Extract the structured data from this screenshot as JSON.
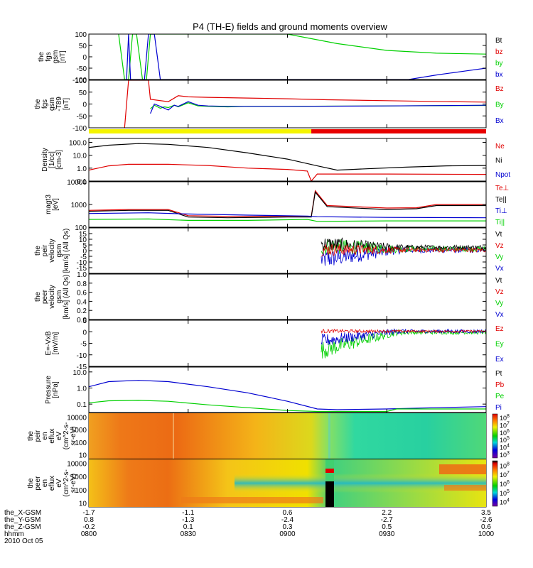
{
  "title": "P4 (TH-E) fields and ground moments overview",
  "date_label": "2010 Oct 05",
  "footer": {
    "row_labels": [
      "the_X-GSM",
      "the_Y-GSM",
      "the_Z-GSM",
      "hhmm"
    ],
    "columns": [
      {
        "x": "-1.7",
        "y": "0.8",
        "z": "-0.2",
        "t": "0800"
      },
      {
        "x": "-1.1",
        "y": "-1.3",
        "z": "0.1",
        "t": "0830"
      },
      {
        "x": "0.6",
        "y": "-2.4",
        "z": "0.3",
        "t": "0900"
      },
      {
        "x": "2.2",
        "y": "-2.7",
        "z": "0.5",
        "t": "0930"
      },
      {
        "x": "3.5",
        "y": "-2.6",
        "z": "0.6",
        "t": "1000"
      }
    ]
  },
  "colors": {
    "black": "#000000",
    "red": "#e00000",
    "green": "#00d000",
    "blue": "#0000d0",
    "mode_slow": "#f4f400",
    "mode_fast": "#e80000"
  },
  "chart_data": {
    "type": "line",
    "time_range_hours": [
      8.0,
      10.0
    ],
    "panels": [
      {
        "id": "fgs",
        "ylabel_lines": [
          "the",
          "fgs",
          "gsm",
          "[nT]"
        ],
        "ylim": [
          -100,
          100
        ],
        "yticks": [
          "100",
          "50",
          "0",
          "-50",
          "-100"
        ],
        "legend": [
          {
            "text": "Bt",
            "color": "#000000"
          },
          {
            "text": "bz",
            "color": "#e00000"
          },
          {
            "text": "by",
            "color": "#00d000"
          },
          {
            "text": "bx",
            "color": "#0000d0"
          }
        ],
        "series": [
          {
            "color": "#00d000",
            "t": [
              8.15,
              8.18,
              8.2,
              8.22,
              8.24,
              8.27,
              8.29,
              8.31,
              8.33,
              8.5,
              9.0,
              9.25,
              9.5,
              9.75,
              10.0
            ],
            "y": [
              100,
              -100,
              -100,
              100,
              100,
              -100,
              -100,
              100,
              100,
              100,
              100,
              58,
              28,
              16,
              12
            ]
          },
          {
            "color": "#0000d0",
            "t": [
              8.19,
              8.2,
              8.21,
              8.28,
              8.3,
              8.33,
              8.36,
              9.61,
              9.75,
              9.9,
              10.0
            ],
            "y": [
              -100,
              100,
              -100,
              -100,
              100,
              100,
              -100,
              -100,
              -80,
              -62,
              -50
            ]
          }
        ]
      },
      {
        "id": "fgm",
        "ylabel_lines": [
          "the",
          "fgs",
          "gsm",
          "-T89",
          "[nT]"
        ],
        "ylim": [
          -100,
          100
        ],
        "yticks": [
          "100",
          "50",
          "0",
          "-50",
          "-100"
        ],
        "legend": [
          {
            "text": "Bz",
            "color": "#e00000"
          },
          {
            "text": "By",
            "color": "#00d000"
          },
          {
            "text": "Bx",
            "color": "#0000d0"
          }
        ],
        "series": [
          {
            "color": "#e00000",
            "t": [
              8.18,
              8.2,
              8.23,
              8.3,
              8.31,
              8.4,
              8.45,
              8.5,
              8.6,
              8.8,
              9.0,
              9.2,
              9.5,
              9.8,
              10.0
            ],
            "y": [
              -100,
              100,
              100,
              100,
              20,
              10,
              35,
              30,
              28,
              25,
              22,
              18,
              14,
              10,
              8
            ]
          },
          {
            "color": "#00d000",
            "t": [
              8.31,
              8.33,
              8.36,
              8.38,
              8.4,
              8.43,
              8.45,
              8.5,
              8.55,
              8.6,
              8.7,
              8.8,
              9.0,
              9.2,
              9.5,
              10.0
            ],
            "y": [
              -20,
              -5,
              -18,
              -12,
              -15,
              -5,
              -12,
              5,
              -8,
              -10,
              -12,
              -10,
              -10,
              -9,
              -8,
              -6
            ]
          },
          {
            "color": "#0000d0",
            "t": [
              8.31,
              8.33,
              8.36,
              8.4,
              8.43,
              8.45,
              8.5,
              8.55,
              8.6,
              8.7,
              9.0,
              9.5,
              10.0
            ],
            "y": [
              -40,
              0,
              -10,
              -25,
              -5,
              -10,
              10,
              -5,
              -8,
              -10,
              -10,
              -8,
              -5
            ]
          }
        ]
      },
      {
        "id": "moments-density",
        "ylabel_lines": [
          "Density",
          "[1/cc]",
          "[cm-3]"
        ],
        "log": true,
        "ylim": [
          0.1,
          200
        ],
        "yticks": [
          "100.0",
          "10.0",
          "1.0",
          "0.1"
        ],
        "legend": [
          {
            "text": "Ne",
            "color": "#e00000"
          },
          {
            "text": "Ni",
            "color": "#000000"
          },
          {
            "text": "Npot",
            "color": "#0000d0"
          }
        ],
        "series": [
          {
            "color": "#000000",
            "t": [
              8.0,
              8.1,
              8.25,
              8.4,
              8.6,
              8.8,
              9.0,
              9.15,
              9.25,
              9.4,
              9.6,
              9.8,
              10.0
            ],
            "y": [
              40,
              60,
              80,
              70,
              40,
              15,
              5,
              1.5,
              0.7,
              0.9,
              1.2,
              1.5,
              1.6
            ]
          },
          {
            "color": "#e00000",
            "t": [
              8.0,
              8.1,
              8.2,
              8.4,
              8.6,
              8.8,
              9.0,
              9.1,
              9.12,
              9.15,
              9.5,
              10.0
            ],
            "y": [
              0.7,
              1.5,
              2.0,
              2.0,
              1.6,
              1.0,
              0.8,
              0.6,
              0.1,
              0.35,
              0.35,
              0.33
            ]
          }
        ]
      },
      {
        "id": "moments-temperature",
        "ylabel_lines": [
          "magt3",
          "[eV]"
        ],
        "log": true,
        "ylim": [
          100,
          10000
        ],
        "yticks": [
          "10000",
          "1000",
          "100"
        ],
        "legend": [
          {
            "text": "Te⊥",
            "color": "#e00000"
          },
          {
            "text": "Te||",
            "color": "#000000"
          },
          {
            "text": "Ti⊥",
            "color": "#0000d0"
          },
          {
            "text": "Ti||",
            "color": "#00d000"
          }
        ],
        "series": [
          {
            "color": "#e00000",
            "t": [
              8.0,
              8.2,
              8.4,
              8.5,
              8.7,
              9.0,
              9.12,
              9.14,
              9.2,
              9.5,
              9.65,
              9.75,
              10.0
            ],
            "y": [
              550,
              600,
              600,
              320,
              300,
              300,
              300,
              4000,
              900,
              700,
              720,
              1000,
              1000
            ]
          },
          {
            "color": "#000000",
            "t": [
              8.0,
              8.2,
              8.4,
              8.5,
              8.7,
              9.0,
              9.12,
              9.14,
              9.2,
              9.5,
              9.65,
              9.75,
              10.0
            ],
            "y": [
              500,
              550,
              550,
              280,
              260,
              280,
              280,
              3500,
              800,
              600,
              650,
              900,
              900
            ]
          },
          {
            "color": "#0000d0",
            "t": [
              8.0,
              8.3,
              8.5,
              8.8,
              9.1,
              9.15,
              9.5,
              10.0
            ],
            "y": [
              400,
              430,
              380,
              340,
              310,
              290,
              270,
              260
            ]
          },
          {
            "color": "#00d000",
            "t": [
              8.0,
              8.3,
              8.5,
              8.8,
              9.1,
              9.15,
              9.5,
              10.0
            ],
            "y": [
              220,
              230,
              200,
              200,
              220,
              180,
              190,
              190
            ]
          }
        ]
      },
      {
        "id": "peir-velocity",
        "ylabel_lines": [
          "the",
          "peir",
          "velocity",
          "gsm",
          "[km/s] (All Qs)"
        ],
        "ylim": [
          -20,
          20
        ],
        "yticks": [
          "15",
          "10",
          "5",
          "0",
          "-5",
          "-10",
          "-15"
        ],
        "legend": [
          {
            "text": "Vt",
            "color": "#000000"
          },
          {
            "text": "Vz",
            "color": "#e00000"
          },
          {
            "text": "Vy",
            "color": "#00d000"
          },
          {
            "text": "Vx",
            "color": "#0000d0"
          }
        ],
        "noisy": [
          {
            "color": "#0000d0",
            "t0": 9.17,
            "t1": 10.0,
            "start": -8,
            "end": 0.5,
            "amp0": 9,
            "amp1": 2.5
          },
          {
            "color": "#00d000",
            "t0": 9.17,
            "t1": 10.0,
            "start": 4,
            "end": 1.5,
            "amp0": 8,
            "amp1": 2.5
          },
          {
            "color": "#000000",
            "t0": 9.17,
            "t1": 10.0,
            "start": 6,
            "end": 3,
            "amp0": 7,
            "amp1": 2
          },
          {
            "color": "#e00000",
            "t0": 9.17,
            "t1": 10.0,
            "start": 1,
            "end": 0.5,
            "amp0": 6,
            "amp1": 2
          }
        ]
      },
      {
        "id": "peer-velocity",
        "ylabel_lines": [
          "the",
          "peer",
          "velocity",
          "gsm",
          "[km/s] (All Qs)"
        ],
        "ylim": [
          0,
          1
        ],
        "yticks": [
          "1.0",
          "0.8",
          "0.6",
          "0.4",
          "0.2",
          "0.0"
        ],
        "legend": [
          {
            "text": "Vt",
            "color": "#000000"
          },
          {
            "text": "Vz",
            "color": "#e00000"
          },
          {
            "text": "Vy",
            "color": "#00d000"
          },
          {
            "text": "Vx",
            "color": "#0000d0"
          }
        ]
      },
      {
        "id": "efield",
        "ylabel_lines": [
          "E=-VxB",
          "[mV/m]"
        ],
        "ylim": [
          -15,
          5
        ],
        "yticks": [
          "5",
          "0",
          "-5",
          "-10",
          "-15"
        ],
        "legend": [
          {
            "text": "Ez",
            "color": "#e00000"
          },
          {
            "text": "Ey",
            "color": "#00d000"
          },
          {
            "text": "Ex",
            "color": "#0000d0"
          }
        ],
        "noisy": [
          {
            "color": "#00d000",
            "t0": 9.17,
            "t1": 10.0,
            "start": -8,
            "end": -0.3,
            "amp0": 4,
            "amp1": 0.8
          },
          {
            "color": "#0000d0",
            "t0": 9.17,
            "t1": 10.0,
            "start": -4,
            "end": 0.2,
            "amp0": 3,
            "amp1": 0.8
          },
          {
            "color": "#e00000",
            "t0": 9.17,
            "t1": 10.0,
            "start": 0.3,
            "end": 0.2,
            "amp0": 0.8,
            "amp1": 0.5
          }
        ]
      },
      {
        "id": "pressure",
        "ylabel_lines": [
          "Pressure",
          "[nPa]"
        ],
        "log": true,
        "ylim": [
          0.03,
          20
        ],
        "yticks": [
          "10.0",
          "1.0",
          "0.1"
        ],
        "legend": [
          {
            "text": "Pt",
            "color": "#000000"
          },
          {
            "text": "Pb",
            "color": "#e00000"
          },
          {
            "text": "Pe",
            "color": "#00d000"
          },
          {
            "text": "Pi",
            "color": "#0000d0"
          }
        ],
        "series": [
          {
            "color": "#0000d0",
            "t": [
              8.0,
              8.1,
              8.25,
              8.4,
              8.6,
              8.8,
              9.0,
              9.15,
              9.25,
              9.5,
              9.75,
              10.0
            ],
            "y": [
              1.2,
              2.5,
              3.0,
              2.5,
              1.2,
              0.5,
              0.15,
              0.05,
              0.045,
              0.05,
              0.06,
              0.07
            ]
          },
          {
            "color": "#00d000",
            "t": [
              8.0,
              8.1,
              8.25,
              8.4,
              8.6,
              8.8,
              9.0,
              9.15,
              9.25,
              9.5,
              9.55,
              9.75,
              10.0
            ],
            "y": [
              0.12,
              0.16,
              0.17,
              0.15,
              0.09,
              0.06,
              0.04,
              0.035,
              0.035,
              0.035,
              0.05,
              0.05,
              0.05
            ]
          }
        ]
      }
    ],
    "spectrograms": [
      {
        "id": "peir-en-eflux",
        "ylabel_lines": [
          "the",
          "peir",
          "en",
          "eflux",
          "eV",
          "(cm^2-s-",
          "sr-eV)"
        ],
        "yticks": [
          "10000",
          "1000",
          "100",
          "10"
        ],
        "colorbar_ticks": [
          "10^8",
          "10^7",
          "10^6",
          "10^5",
          "10^4",
          "10^3"
        ]
      },
      {
        "id": "peer-en-eflux",
        "ylabel_lines": [
          "the",
          "peer",
          "en",
          "eflux",
          "eV",
          "(cm^2-s-",
          "sr-eV)"
        ],
        "yticks": [
          "10000",
          "1000",
          "100",
          "10"
        ],
        "colorbar_ticks": [
          "10^8",
          "10^7",
          "10^6",
          "10^5",
          "10^4"
        ]
      }
    ],
    "mode_bar": {
      "switch_time": 9.12
    }
  }
}
